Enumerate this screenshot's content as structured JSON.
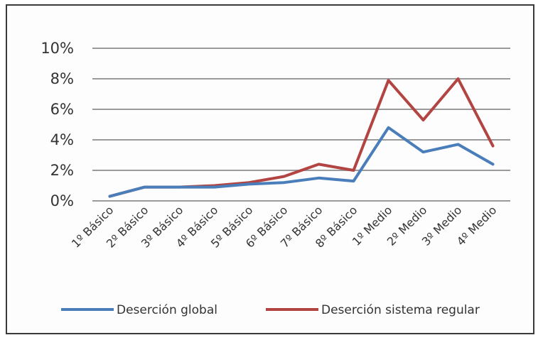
{
  "chart_data": {
    "type": "line",
    "categories": [
      "1º Básico",
      "2º Básico",
      "3º Básico",
      "4º Básico",
      "5º Básico",
      "6º Básico",
      "7º Básico",
      "8º Básico",
      "1º Medio",
      "2º Medio",
      "3º Medio",
      "4º Medio"
    ],
    "series": [
      {
        "name": "Deserción global",
        "color": "#4a7ebb",
        "values": [
          0.3,
          0.9,
          0.9,
          0.9,
          1.1,
          1.2,
          1.5,
          1.3,
          4.8,
          3.2,
          3.7,
          2.4
        ]
      },
      {
        "name": "Deserción sistema regular",
        "color": "#b24442",
        "values": [
          0.3,
          0.9,
          0.9,
          1.0,
          1.2,
          1.6,
          2.4,
          2.0,
          7.9,
          5.3,
          8.0,
          3.6
        ]
      }
    ],
    "y_ticks": [
      "0%",
      "2%",
      "4%",
      "6%",
      "8%",
      "10%"
    ],
    "ylim": [
      0,
      10
    ],
    "grid": true,
    "legend_position": "bottom"
  }
}
